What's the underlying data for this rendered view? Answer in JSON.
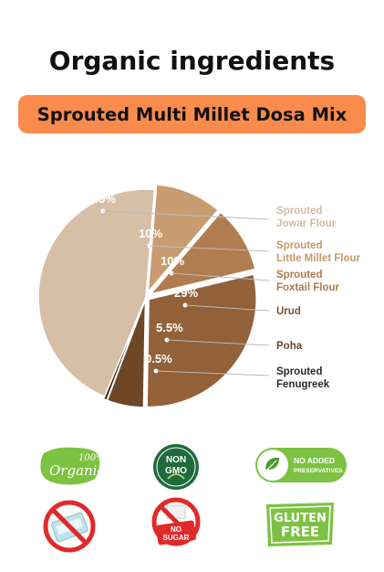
{
  "header": {
    "title": "Organic ingredients",
    "product_name": "Sprouted Multi Millet Dosa Mix"
  },
  "chart_data": {
    "type": "pie",
    "title": "Organic ingredients",
    "subtitle": "Sprouted Multi Millet Dosa Mix",
    "legend_position": "right",
    "slices": [
      {
        "label_lines": [
          "Sprouted",
          "Jowar Flour"
        ],
        "value": 45,
        "value_label": "45%",
        "color": "#d6bfa6",
        "legend_color": "#d2bca3"
      },
      {
        "label_lines": [
          "Sprouted",
          "Little Millet Flour"
        ],
        "value": 10,
        "value_label": "10%",
        "color": "#c89c70",
        "legend_color": "#c49a6c"
      },
      {
        "label_lines": [
          "Sprouted",
          "Foxtail Flour"
        ],
        "value": 10,
        "value_label": "10%",
        "color": "#b07d50",
        "legend_color": "#b07a4a"
      },
      {
        "label_lines": [
          "Urud"
        ],
        "value": 29,
        "value_label": "29%",
        "color": "#93623a",
        "legend_color": "#7d5330"
      },
      {
        "label_lines": [
          "Poha"
        ],
        "value": 5.5,
        "value_label": "5.5%",
        "color": "#6e4726",
        "legend_color": "#6a4628"
      },
      {
        "label_lines": [
          "Sprouted",
          "Fenugreek"
        ],
        "value": 0.5,
        "value_label": "0.5%",
        "color": "#3e2716",
        "legend_color": "#2a2a2a"
      }
    ]
  },
  "badges": [
    {
      "name": "organic-100-badge",
      "line1": "100%",
      "line2": "Organic",
      "color": "#7dc242"
    },
    {
      "name": "non-gmo-badge",
      "line1": "NON",
      "line2": "GMO",
      "color": "#1f6b3a"
    },
    {
      "name": "no-added-preservatives-badge",
      "line1": "NO ADDED",
      "line2": "PRESERVATIVES",
      "color": "#7dc242"
    },
    {
      "name": "no-maida-badge",
      "icon": "crossed-out-flour-bag-icon",
      "color": "#e02a2a"
    },
    {
      "name": "no-sugar-badge",
      "line1": "NO",
      "line2": "SUGAR",
      "color": "#e02a2a"
    },
    {
      "name": "gluten-free-badge",
      "line1": "GLUTEN",
      "line2": "FREE",
      "color": "#7dc242"
    }
  ]
}
